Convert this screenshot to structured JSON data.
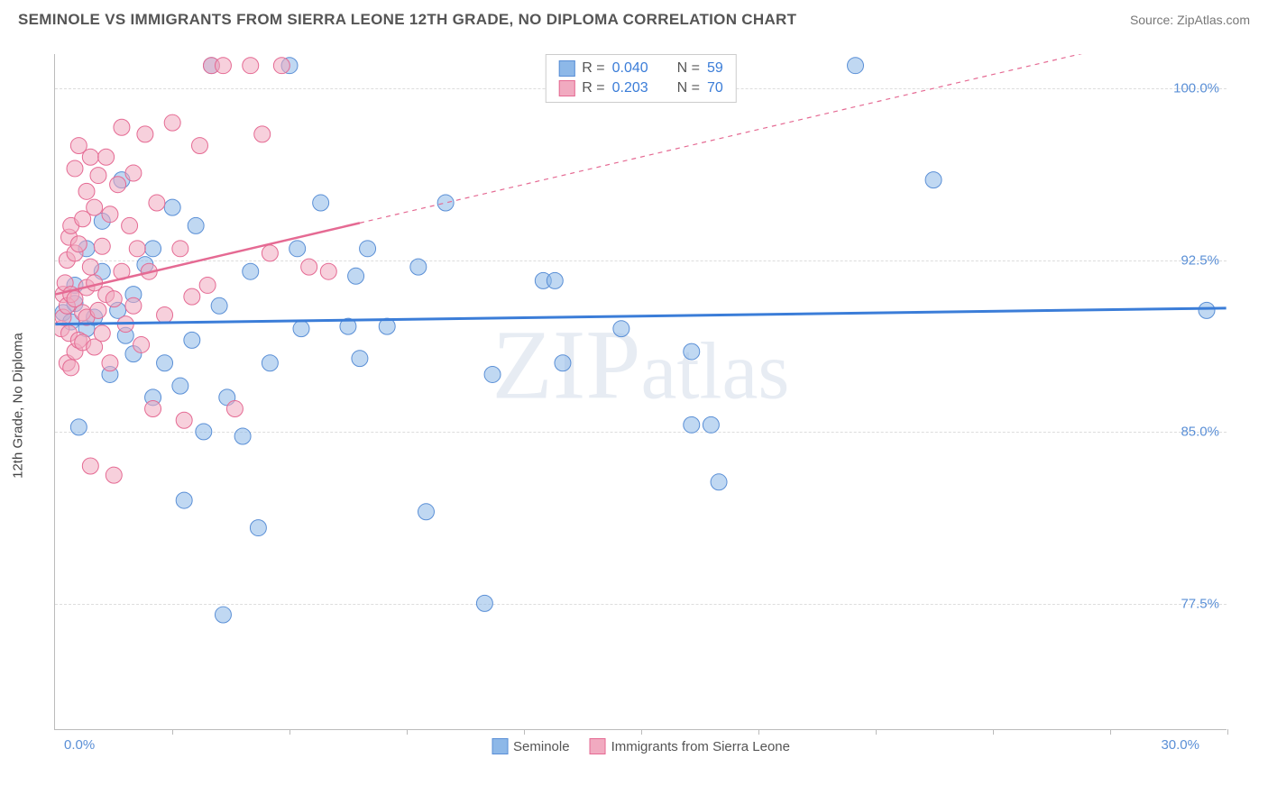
{
  "title": "SEMINOLE VS IMMIGRANTS FROM SIERRA LEONE 12TH GRADE, NO DIPLOMA CORRELATION CHART",
  "source": "Source: ZipAtlas.com",
  "y_axis_label": "12th Grade, No Diploma",
  "watermark": "ZIPatlas",
  "chart": {
    "type": "scatter",
    "xlim": [
      0.0,
      30.0
    ],
    "ylim": [
      72.0,
      101.5
    ],
    "x_min_label": "0.0%",
    "x_max_label": "30.0%",
    "y_grid": [
      77.5,
      85.0,
      92.5,
      100.0
    ],
    "y_grid_labels": [
      "77.5%",
      "85.0%",
      "92.5%",
      "100.0%"
    ],
    "x_ticks": [
      3.0,
      6.0,
      9.0,
      12.0,
      15.0,
      18.0,
      21.0,
      24.0,
      27.0,
      30.0
    ],
    "grid_color": "#dddddd",
    "axis_color": "#bbbbbb",
    "tick_label_color": "#5a8fd6",
    "background_color": "#ffffff",
    "title_fontsize": 17,
    "label_fontsize": 15,
    "marker_radius": 9,
    "marker_opacity": 0.55,
    "series": [
      {
        "name": "Seminole",
        "color_fill": "#8db8e8",
        "color_stroke": "#5a8fd6",
        "R": "0.040",
        "N": "59",
        "trend": {
          "y_at_xmin": 89.7,
          "y_at_xmax": 90.4,
          "color": "#3b7dd8",
          "width": 3,
          "solid_until_x": 30.0
        },
        "points": [
          [
            0.2,
            90.2
          ],
          [
            0.4,
            89.8
          ],
          [
            0.5,
            90.6
          ],
          [
            0.5,
            91.4
          ],
          [
            0.6,
            85.2
          ],
          [
            0.8,
            89.5
          ],
          [
            0.8,
            93.0
          ],
          [
            1.0,
            90.0
          ],
          [
            1.2,
            94.2
          ],
          [
            1.2,
            92.0
          ],
          [
            1.4,
            87.5
          ],
          [
            1.6,
            90.3
          ],
          [
            1.7,
            96.0
          ],
          [
            1.8,
            89.2
          ],
          [
            2.0,
            88.4
          ],
          [
            2.0,
            91.0
          ],
          [
            2.3,
            92.3
          ],
          [
            2.5,
            93.0
          ],
          [
            2.5,
            86.5
          ],
          [
            2.8,
            88.0
          ],
          [
            3.0,
            94.8
          ],
          [
            3.2,
            87.0
          ],
          [
            3.3,
            82.0
          ],
          [
            3.5,
            89.0
          ],
          [
            3.6,
            94.0
          ],
          [
            3.8,
            85.0
          ],
          [
            4.0,
            101.0
          ],
          [
            4.2,
            90.5
          ],
          [
            4.4,
            86.5
          ],
          [
            4.3,
            77.0
          ],
          [
            4.8,
            84.8
          ],
          [
            5.0,
            92.0
          ],
          [
            5.2,
            80.8
          ],
          [
            5.5,
            88.0
          ],
          [
            6.0,
            101.0
          ],
          [
            6.2,
            93.0
          ],
          [
            6.3,
            89.5
          ],
          [
            6.8,
            95.0
          ],
          [
            7.5,
            89.6
          ],
          [
            7.7,
            91.8
          ],
          [
            7.8,
            88.2
          ],
          [
            8.0,
            93.0
          ],
          [
            8.5,
            89.6
          ],
          [
            9.3,
            92.2
          ],
          [
            9.5,
            81.5
          ],
          [
            10.0,
            95.0
          ],
          [
            11.0,
            77.5
          ],
          [
            11.2,
            87.5
          ],
          [
            12.5,
            91.6
          ],
          [
            12.8,
            91.6
          ],
          [
            13.0,
            88.0
          ],
          [
            14.5,
            89.5
          ],
          [
            16.3,
            88.5
          ],
          [
            16.3,
            85.3
          ],
          [
            16.8,
            85.3
          ],
          [
            17.0,
            82.8
          ],
          [
            20.5,
            101.0
          ],
          [
            22.5,
            96.0
          ],
          [
            29.5,
            90.3
          ]
        ]
      },
      {
        "name": "Immigrants from Sierra Leone",
        "color_fill": "#f1aac0",
        "color_stroke": "#e56a93",
        "R": "0.203",
        "N": "70",
        "trend": {
          "y_at_xmin": 91.0,
          "y_at_xmax": 103.0,
          "color": "#e56a93",
          "width": 2.5,
          "solid_until_x": 7.8
        },
        "points": [
          [
            0.15,
            89.5
          ],
          [
            0.2,
            90.0
          ],
          [
            0.2,
            91.0
          ],
          [
            0.25,
            91.5
          ],
          [
            0.3,
            88.0
          ],
          [
            0.3,
            90.5
          ],
          [
            0.3,
            92.5
          ],
          [
            0.35,
            89.3
          ],
          [
            0.35,
            93.5
          ],
          [
            0.4,
            87.8
          ],
          [
            0.4,
            91.0
          ],
          [
            0.4,
            94.0
          ],
          [
            0.5,
            88.5
          ],
          [
            0.5,
            90.8
          ],
          [
            0.5,
            92.8
          ],
          [
            0.5,
            96.5
          ],
          [
            0.6,
            89.0
          ],
          [
            0.6,
            97.5
          ],
          [
            0.6,
            93.2
          ],
          [
            0.7,
            90.2
          ],
          [
            0.7,
            94.3
          ],
          [
            0.7,
            88.9
          ],
          [
            0.8,
            91.3
          ],
          [
            0.8,
            95.5
          ],
          [
            0.8,
            90.0
          ],
          [
            0.9,
            83.5
          ],
          [
            0.9,
            97.0
          ],
          [
            0.9,
            92.2
          ],
          [
            1.0,
            88.7
          ],
          [
            1.0,
            91.5
          ],
          [
            1.0,
            94.8
          ],
          [
            1.1,
            90.3
          ],
          [
            1.1,
            96.2
          ],
          [
            1.2,
            93.1
          ],
          [
            1.2,
            89.3
          ],
          [
            1.3,
            97.0
          ],
          [
            1.3,
            91.0
          ],
          [
            1.4,
            88.0
          ],
          [
            1.4,
            94.5
          ],
          [
            1.5,
            90.8
          ],
          [
            1.5,
            83.1
          ],
          [
            1.6,
            95.8
          ],
          [
            1.7,
            92.0
          ],
          [
            1.7,
            98.3
          ],
          [
            1.8,
            89.7
          ],
          [
            1.9,
            94.0
          ],
          [
            2.0,
            96.3
          ],
          [
            2.0,
            90.5
          ],
          [
            2.1,
            93.0
          ],
          [
            2.2,
            88.8
          ],
          [
            2.3,
            98.0
          ],
          [
            2.4,
            92.0
          ],
          [
            2.5,
            86.0
          ],
          [
            2.6,
            95.0
          ],
          [
            2.8,
            90.1
          ],
          [
            3.0,
            98.5
          ],
          [
            3.2,
            93.0
          ],
          [
            3.3,
            85.5
          ],
          [
            3.5,
            90.9
          ],
          [
            3.7,
            97.5
          ],
          [
            3.9,
            91.4
          ],
          [
            4.0,
            101.0
          ],
          [
            4.3,
            101.0
          ],
          [
            5.0,
            101.0
          ],
          [
            5.3,
            98.0
          ],
          [
            5.5,
            92.8
          ],
          [
            5.8,
            101.0
          ],
          [
            6.5,
            92.2
          ],
          [
            4.6,
            86.0
          ],
          [
            7.0,
            92.0
          ]
        ]
      }
    ]
  },
  "legend_bottom": [
    {
      "label": "Seminole",
      "fill": "#8db8e8",
      "stroke": "#5a8fd6"
    },
    {
      "label": "Immigrants from Sierra Leone",
      "fill": "#f1aac0",
      "stroke": "#e56a93"
    }
  ]
}
